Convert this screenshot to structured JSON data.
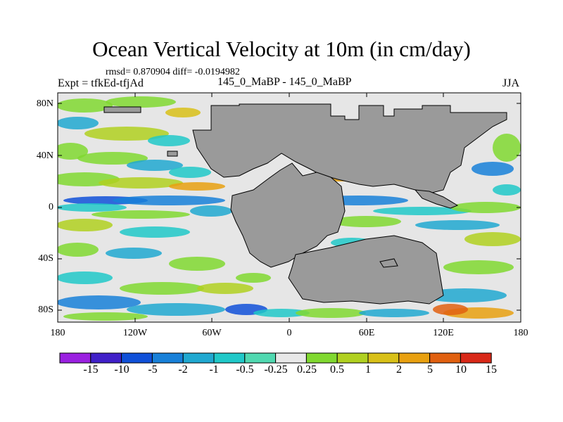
{
  "title": "Ocean Vertical Velocity at 10m (in cm/day)",
  "stats": "rmsd= 0.870904 diff= -0.0194982",
  "experiment": "Expt = tfkEd-tfjAd",
  "center_label": "145_0_MaBP - 145_0_MaBP",
  "season": "JJA",
  "colors": {
    "land": "#9a9a9a",
    "ocean_background": "#e6e6e6"
  },
  "axes": {
    "y_ticks": [
      "80N",
      "40N",
      "0",
      "40S",
      "80S"
    ],
    "x_ticks": [
      "180",
      "120W",
      "60W",
      "0",
      "60E",
      "120E",
      "180"
    ]
  },
  "colorbar": {
    "labels": [
      "-15",
      "-10",
      "-5",
      "-2",
      "-1",
      "-0.5",
      "-0.25",
      "0.25",
      "0.5",
      "1",
      "2",
      "5",
      "10",
      "15"
    ],
    "colors": [
      "#9a20e0",
      "#4020c8",
      "#1050d8",
      "#1880d8",
      "#20a8d0",
      "#20c8c8",
      "#50d8b0",
      "#e8e8e8",
      "#80d830",
      "#b0d020",
      "#d8c018",
      "#e8a010",
      "#e06010",
      "#d82818"
    ]
  }
}
